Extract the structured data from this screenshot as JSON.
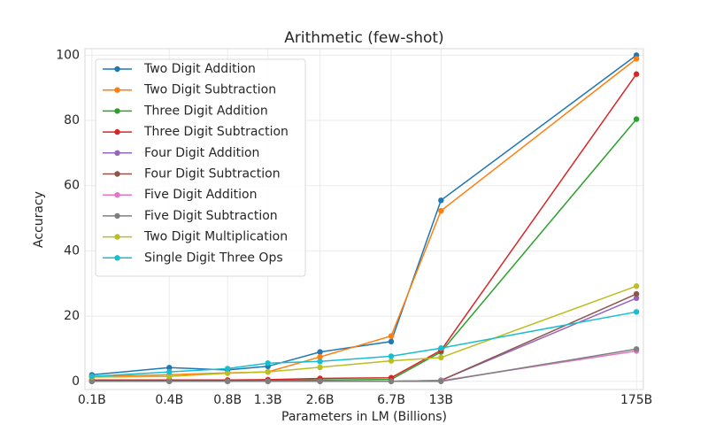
{
  "chart_data": {
    "type": "line",
    "title": "Arithmetic (few-shot)",
    "x_label": "Parameters in LM (Billions)",
    "y_label": "Accuracy",
    "x": [
      0.125,
      0.35,
      0.76,
      1.3,
      2.6,
      6.7,
      13,
      175
    ],
    "xscale": "log",
    "xlim": [
      0.114,
      192
    ],
    "xticks": [
      {
        "value": 0.125,
        "label": "0.1B"
      },
      {
        "value": 0.35,
        "label": "0.4B"
      },
      {
        "value": 0.76,
        "label": "0.8B"
      },
      {
        "value": 1.3,
        "label": "1.3B"
      },
      {
        "value": 2.6,
        "label": "2.6B"
      },
      {
        "value": 6.7,
        "label": "6.7B"
      },
      {
        "value": 13,
        "label": "13B"
      },
      {
        "value": 175,
        "label": "175B"
      }
    ],
    "ylim": [
      -2.5,
      102
    ],
    "yticks": [
      0,
      20,
      40,
      60,
      80,
      100
    ],
    "grid": true,
    "legend": "upper-left",
    "series": [
      {
        "name": "Two Digit Addition",
        "color": "#1f77b4",
        "values": [
          2.0,
          4.2,
          3.5,
          4.6,
          9.0,
          12.2,
          55.5,
          100
        ]
      },
      {
        "name": "Two Digit Subtraction",
        "color": "#ff7f0e",
        "values": [
          1.5,
          2.0,
          2.6,
          2.9,
          7.5,
          13.9,
          52.3,
          98.9
        ]
      },
      {
        "name": "Three Digit Addition",
        "color": "#2ca02c",
        "values": [
          0.2,
          0.2,
          0.2,
          0.3,
          0.4,
          0.6,
          9.0,
          80.4
        ]
      },
      {
        "name": "Three Digit Subtraction",
        "color": "#d62728",
        "values": [
          0.4,
          0.4,
          0.4,
          0.5,
          0.9,
          1.1,
          9.5,
          94.2
        ]
      },
      {
        "name": "Four Digit Addition",
        "color": "#9467bd",
        "values": [
          0,
          0,
          0,
          0,
          0,
          0,
          0.3,
          25.5
        ]
      },
      {
        "name": "Four Digit Subtraction",
        "color": "#8c564b",
        "values": [
          0,
          0,
          0,
          0,
          0,
          0,
          0.3,
          26.8
        ]
      },
      {
        "name": "Five Digit Addition",
        "color": "#e377c2",
        "values": [
          0,
          0,
          0,
          0,
          0,
          0,
          0.2,
          9.3
        ]
      },
      {
        "name": "Five Digit Subtraction",
        "color": "#7f7f7f",
        "values": [
          0,
          0,
          0,
          0,
          0,
          0,
          0,
          9.9
        ]
      },
      {
        "name": "Two Digit Multiplication",
        "color": "#bcbd22",
        "values": [
          1.3,
          1.5,
          2.5,
          2.9,
          4.3,
          6.3,
          7.3,
          29.2
        ]
      },
      {
        "name": "Single Digit Three Ops",
        "color": "#17becf",
        "values": [
          1.5,
          2.9,
          3.9,
          5.6,
          6.1,
          7.7,
          10.2,
          21.3
        ]
      }
    ]
  }
}
